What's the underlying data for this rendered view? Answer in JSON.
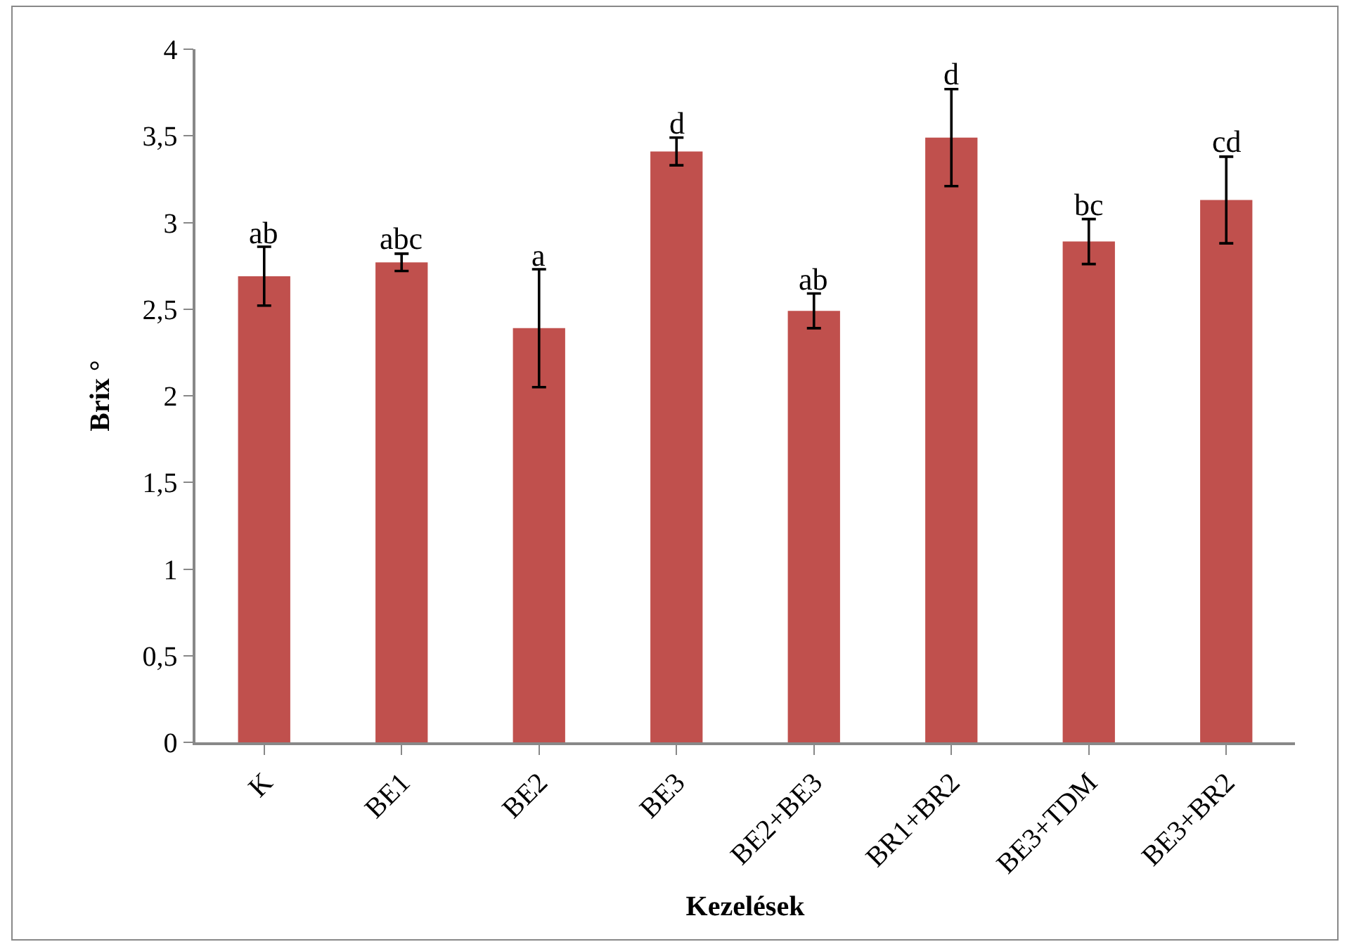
{
  "chart_data": {
    "type": "bar",
    "xlabel": "Kezelések",
    "ylabel": "Brix °",
    "categories": [
      "K",
      "BE1",
      "BE2",
      "BE3",
      "BE2+BE3",
      "BR1+BR2",
      "BE3+TDM",
      "BE3+BR2"
    ],
    "values": [
      2.69,
      2.77,
      2.39,
      3.41,
      2.49,
      3.49,
      2.89,
      3.13
    ],
    "errors": [
      0.17,
      0.05,
      0.34,
      0.08,
      0.1,
      0.28,
      0.13,
      0.25
    ],
    "color": "#c0504d",
    "ylim": [
      0,
      4
    ],
    "yticks": [
      0,
      {
        "value": 0.5,
        "label": "0,5"
      },
      1,
      {
        "value": 1.5,
        "label": "1,5"
      },
      2,
      {
        "value": 2.5,
        "label": "2,5"
      },
      3,
      {
        "value": 3.5,
        "label": "3,5"
      },
      4
    ],
    "annotations": [
      {
        "text": "ab",
        "x": "K",
        "y": 2.86
      },
      {
        "text": "abc",
        "x": "BE1",
        "y": 2.82
      },
      {
        "text": "a",
        "x": "BE2",
        "y": 2.73
      },
      {
        "text": "d",
        "x": "BE3",
        "y": 3.49
      },
      {
        "text": "ab",
        "x": "BE2+BE3",
        "y": 2.59
      },
      {
        "text": "d",
        "x": "BR1+BR2",
        "y": 3.77
      },
      {
        "text": "bc",
        "x": "BE3+TDM",
        "y": 3.02
      },
      {
        "text": "cd",
        "x": "BE3+BR2",
        "y": 3.38
      }
    ]
  }
}
